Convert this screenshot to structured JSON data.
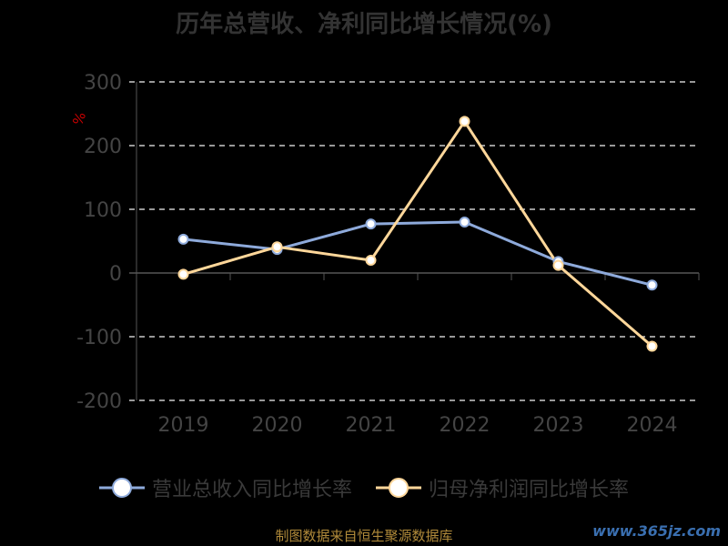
{
  "title": "历年总营收、净利同比增长情况(%)",
  "source": "制图数据来自恒生聚源数据库",
  "watermark": "www.365jz.com",
  "colors": {
    "revenue": "#8eaadb",
    "profit": "#ffd79a",
    "grid": "#cccccc",
    "axis_text": "#444444",
    "unit": "#cc0000"
  },
  "chart_data": {
    "type": "line",
    "title": "历年总营收、净利同比增长情况(%)",
    "x": [
      "2019",
      "2020",
      "2021",
      "2022",
      "2023",
      "2024"
    ],
    "ylim": [
      -200,
      300
    ],
    "yticks": [
      "300",
      "200",
      "100",
      "0",
      "-100",
      "-200"
    ],
    "ytick_values": [
      300,
      200,
      100,
      0,
      -100,
      -200
    ],
    "ylabel": "%",
    "grid": true,
    "legend_position": "bottom",
    "series": [
      {
        "name": "营业总收入同比增长率",
        "values": [
          53,
          37,
          77,
          80,
          18,
          -19
        ]
      },
      {
        "name": "归母净利润同比增长率",
        "values": [
          -2,
          41,
          20,
          238,
          12,
          -115
        ]
      }
    ]
  }
}
